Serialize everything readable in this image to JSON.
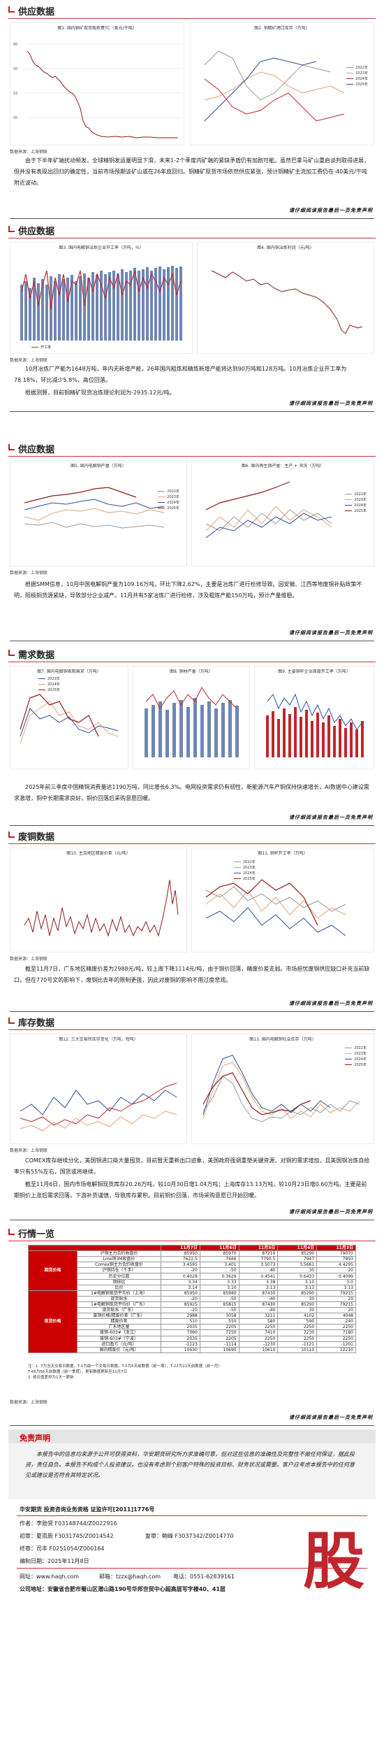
{
  "sections": [
    {
      "id": "s1",
      "title": "供应数据"
    },
    {
      "id": "s2",
      "title": "供应数据"
    },
    {
      "id": "s3",
      "title": "供应数据"
    },
    {
      "id": "s4",
      "title": "需求数据"
    },
    {
      "id": "s5",
      "title": "废铜数据"
    },
    {
      "id": "s6",
      "title": "库存数据"
    },
    {
      "id": "s7",
      "title": "行情一览"
    }
  ],
  "source": "数据来源：上海钢联",
  "disclaimer_line": "请仔细阅读报告最后一页免责声明",
  "colors": {
    "red": "#c0262d",
    "blue": "#2f4b9b",
    "darkred": "#8b1b1b",
    "grey": "#888",
    "accent": "#c00"
  },
  "charts": {
    "c1": {
      "title": "图1. 国内铜矿现货粗炼费TC（美元/干吨）"
    },
    "c2": {
      "title": "图2. 铜精矿港口库存（万吨）",
      "legend": [
        "2022年",
        "2023年",
        "2024年",
        "2025年"
      ]
    },
    "c3": {
      "title": "图3. 国内电解铜冶炼企业开工率（万吨，%）",
      "legend": [
        "开工率"
      ]
    },
    "c4": {
      "title": "图4. 国内铜冶炼利润（元/吨）"
    },
    "c5": {
      "title": "图5. 国内电解铜产量（万吨）",
      "legend": [
        "2022年",
        "2023年",
        "2024年",
        "2025年"
      ]
    },
    "c6": {
      "title": "图6. 国内再生铜产量：生产 + 冲洗（万吨）",
      "legend": [
        "2022年",
        "2023年",
        "2024年",
        "2025年"
      ]
    },
    "c7": {
      "title": "图7. 国内电解铜表观需求（万吨）",
      "legend": [
        "2023年",
        "2024年",
        "2025年"
      ]
    },
    "c8": {
      "title": "图8. 铜材产量（万吨）"
    },
    "c9": {
      "title": "图9. 主要铜杆企业周度开工率（万吨）"
    },
    "c10": {
      "title": "图10. 主流地区精废价差（元/吨）"
    },
    "c11": {
      "title": "图11. 铜杆开工率（万吨）",
      "legend": [
        "2022年",
        "2023年",
        "2024年",
        "2025年"
      ]
    },
    "c12": {
      "title": "图12. 三大交易所库存变化（万吨，短吨）"
    },
    "c13": {
      "title": "图13. 国内电解铜社会库存（万吨）",
      "legend": [
        "2022年",
        "2023年",
        "2024年",
        "2025年"
      ]
    }
  },
  "paras": {
    "p1": "由于下半年矿端扰动频发，全球精铜发运量明显下滑，未来1-2个季度内矿端的紧缺矛盾仍有加剧可能。虽然巴拿马矿山重启谈判取得进展，但并没有表现出回归的确定性，当前市场预期该矿山或在26年底回归。铜精矿现货市场依然供应紧张，预计铜精矿主流加工费仍在-40美元/干吨附近波动。",
    "p2a": "10月冶炼厂产能为1648万吨，年内无新增产能，26年国内粗炼和精炼新增产能将达到90万吨和128万吨。10月冶炼企业开工率为78.18%，环比减少5.8%，高位回落。",
    "p2b": "根据测算，目前铜精矿现货冶炼理论利润为-2935.12元/吨。",
    "p3": "根据SMM信息，10月中国电解铜产量为109.16万吨，环比下降2.62%，主要是冶炼厂进行检修导致。因安徽、江西等地废铜补贴政策不明，阳极铜货源紧缺，导致部分企业减产。11月共有5家冶炼厂进行检修，涉及粗炼产能150万吨，预计产量维稳。",
    "p4": "2025年前三季度中国精铜消费量达1190万吨，同比增长6.3%。电网投资需求仍有韧性，新能源汽车产铜保持快速增长，AI数据中心建设需求激增，铜中长期需求良好，铜价回落后采购意愿回暖。",
    "p5": "截至11月7日，广东地区精废价差为2988元/吨，较上周下降1114元/吨，由于铜价回落，精废价差走弱。市场担忧废铜供应缺口补充当前缺口，但在770号文的影响下，废铜比去年的限制更强，因此对废铜的影响不用过度悲观。",
    "p6": "COMEX库存继续分化，美国铜进口商大量囤货，目前暂无重新出口迹象，美国政府强调重塑关键资源，对铜的需求增加，且美国铜冶炼自给率只有55%左右，国货或将继续。",
    "p6b": "截至11月6日，国内市场电解铜现货库存20.26万吨，较10月30日增1.04万吨；上海库存13.13万吨，较10月23日增0.60万吨。主要是前期铜价上涨后需求回落，下游补货谨慎，导致库存累积。目前铜价回落，市场采购意愿已开始回暖。"
  },
  "table": {
    "header": [
      "",
      "11月7日",
      "11月6日",
      "11月5日",
      "11月4日",
      "11月3日"
    ],
    "groups": [
      {
        "cat": "期货价格",
        "rows": [
          {
            "label": "沪铜主力合约收盘价",
            "vals": [
              "85950",
              "85970",
              "87210",
              "85290",
              "79070"
            ]
          },
          {
            "label": "Lme铜3M收盘价",
            "vals": [
              "7622.5",
              "7666",
              "7790.5",
              "7947",
              "7893"
            ]
          },
          {
            "label": "Comex铜主力合约收盘价",
            "vals": [
              "3.4595",
              "3.401",
              "3.5073",
              "3.5661",
              "4.4295"
            ]
          },
          {
            "label": "沪铜持仓（千手）",
            "vals": [
              "-20",
              "-50",
              "-40",
              "30",
              "20"
            ]
          },
          {
            "label": "历史分位数",
            "vals": [
              "0.4028",
              "0.3629",
              "0.4541",
              "0.6433",
              "0.4099"
            ]
          },
          {
            "label": "铜排比",
            "vals": [
              "3.34",
              "3.33",
              "3.38",
              "3.10",
              "3.0"
            ]
          },
          {
            "label": "比价",
            "vals": [
              "3.14",
              "3.10",
              "3.13",
              "3.13",
              "3.13"
            ]
          }
        ]
      },
      {
        "cat": "现货价格",
        "rows": [
          {
            "label": "1#电解铜现货平均价（上海）",
            "vals": [
              "85950",
              "85980",
              "87430",
              "85290",
              "79215"
            ]
          },
          {
            "label": "现货贴水",
            "vals": [
              "-20",
              "-50",
              "-40",
              "30",
              "20"
            ]
          },
          {
            "label": "1#电解铜现货平均价（广东）",
            "vals": [
              "85925",
              "85815",
              "87430",
              "85290",
              "79215"
            ]
          },
          {
            "label": "现货贴水（广东）",
            "vals": [
              "-20",
              "-50",
              "-40",
              "30",
              "20"
            ]
          },
          {
            "label": "废铜价格/精废价差（广东）",
            "vals": [
              "2988",
              "3058",
              "3211",
              "4102",
              "4048"
            ]
          },
          {
            "label": "精废价差",
            "vals": [
              "510",
              "550",
              "580",
              "590",
              "240"
            ]
          },
          {
            "label": "广东地区量",
            "vals": [
              "2035",
              "2205",
              "2250",
              "2250",
              "2250"
            ]
          },
          {
            "label": "废铜-603#（浙江）",
            "vals": [
              "7080",
              "7250",
              "7410",
              "7230",
              "7180"
            ]
          },
          {
            "label": "废铜-603#（宁波）",
            "vals": [
              "2035",
              "2205",
              "2250",
              "2250",
              "2250"
            ]
          },
          {
            "label": "进口盈亏（元/吨）",
            "vals": [
              "-1123",
              "-1114",
              "-1230",
              "-1121",
              "-1201"
            ]
          },
          {
            "label": "国内精废价（元/吨）",
            "vals": [
              "10630",
              "10690",
              "10610",
              "10110",
              "12210"
            ]
          }
        ]
      }
    ],
    "notes": [
      "注：1. 7为当天交易日数据，T-1为前一个交易日数据，T-5为5天前数据（前一周），T-22为22天前数据（前一月）",
      "T-66为66天前数据（前一季度），更新数据更新至11月7日",
      "2. 绝对值差异为1天一更新"
    ]
  },
  "footer": {
    "disclaimer_title": "免责声明",
    "disclaimer_body": "本报告中的信息均来源于公开可获得资料，华安期货研究所力求准确可靠，但对这些信息的准确性及完整性不做任何保证，据此投资，责任自负。本报告不构成个人投资建议，也没有考虑到个别客户特殊的投资目标、财务状况或需要。客户应考虑本报告中的任何意见或建议是否符合其特定状况。",
    "company_line": "华安期货 投资咨询业务资格 证监许可[2011]1776号",
    "author": "作者：李勋贤 F03148744/Z0022916",
    "review1": "初审：夏雨辰 F3031745/Z0014542",
    "review2": "复审：鲍峰 F3037342/Z0014770",
    "final": "终审：司丰 F0251054/Z000164",
    "date": "编制日期：2025年11月8日",
    "web": "网址：www.haqh.com",
    "email": "邮箱：tzzx@haqh.com",
    "phone": "电话：0551-62839161",
    "address": "公司地址：安徽省合肥市蜀山区潜山路190号华邦世贸中心超高层写字楼40、41层",
    "logo_char": "股"
  }
}
